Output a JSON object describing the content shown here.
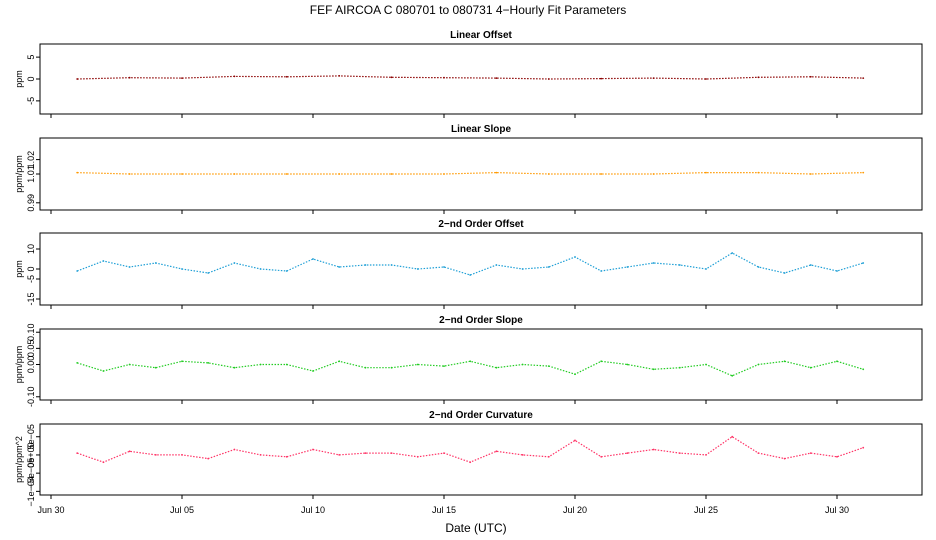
{
  "figure": {
    "title": "FEF   AIRCOA C   080701 to 080731   4−Hourly Fit Parameters",
    "xlabel": "Date (UTC)",
    "x_tick_labels": [
      "Jun 30",
      "Jul 05",
      "Jul 10",
      "Jul 15",
      "Jul 20",
      "Jul 25",
      "Jul 30"
    ]
  },
  "chart_data": [
    {
      "type": "line",
      "title": "Linear Offset",
      "ylabel": "ppm",
      "color": "#8b0000",
      "ylim": [
        -8,
        8
      ],
      "yticks": [
        -5,
        0,
        5
      ],
      "ytick_labels": [
        "-5",
        "0",
        "5"
      ],
      "x": [
        "Jul 01",
        "Jul 03",
        "Jul 05",
        "Jul 07",
        "Jul 09",
        "Jul 11",
        "Jul 13",
        "Jul 15",
        "Jul 17",
        "Jul 19",
        "Jul 21",
        "Jul 23",
        "Jul 25",
        "Jul 27",
        "Jul 29",
        "Jul 31"
      ],
      "values": [
        0.0,
        0.3,
        0.2,
        0.6,
        0.5,
        0.7,
        0.4,
        0.3,
        0.2,
        0.0,
        0.1,
        0.2,
        0.0,
        0.4,
        0.5,
        0.2
      ]
    },
    {
      "type": "line",
      "title": "Linear Slope",
      "ylabel": "ppm/ppm",
      "color": "#ff9900",
      "ylim": [
        0.985,
        1.035
      ],
      "yticks": [
        0.99,
        1.01,
        1.02
      ],
      "ytick_labels": [
        "0.99",
        "1.01",
        "1.02"
      ],
      "x": [
        "Jul 01",
        "Jul 03",
        "Jul 05",
        "Jul 07",
        "Jul 09",
        "Jul 11",
        "Jul 13",
        "Jul 15",
        "Jul 17",
        "Jul 19",
        "Jul 21",
        "Jul 23",
        "Jul 25",
        "Jul 27",
        "Jul 29",
        "Jul 31"
      ],
      "values": [
        1.011,
        1.01,
        1.01,
        1.01,
        1.01,
        1.01,
        1.01,
        1.01,
        1.011,
        1.01,
        1.01,
        1.01,
        1.011,
        1.011,
        1.01,
        1.011
      ]
    },
    {
      "type": "line",
      "title": "2−nd Order Offset",
      "ylabel": "ppm",
      "color": "#1e9fd6",
      "ylim": [
        -18,
        18
      ],
      "yticks": [
        -15,
        -5,
        0,
        10
      ],
      "ytick_labels": [
        "-15",
        "-5",
        "0",
        "10"
      ],
      "x": [
        "Jul 01",
        "Jul 02",
        "Jul 03",
        "Jul 04",
        "Jul 05",
        "Jul 06",
        "Jul 07",
        "Jul 08",
        "Jul 09",
        "Jul 10",
        "Jul 11",
        "Jul 12",
        "Jul 13",
        "Jul 14",
        "Jul 15",
        "Jul 16",
        "Jul 17",
        "Jul 18",
        "Jul 19",
        "Jul 20",
        "Jul 21",
        "Jul 22",
        "Jul 23",
        "Jul 24",
        "Jul 25",
        "Jul 26",
        "Jul 27",
        "Jul 28",
        "Jul 29",
        "Jul 30",
        "Jul 31"
      ],
      "values": [
        -1,
        4,
        1,
        3,
        0,
        -2,
        3,
        0,
        -1,
        5,
        1,
        2,
        2,
        0,
        1,
        -3,
        2,
        0,
        1,
        6,
        -1,
        1,
        3,
        2,
        0,
        8,
        1,
        -2,
        2,
        -1,
        3
      ]
    },
    {
      "type": "line",
      "title": "2−nd Order Slope",
      "ylabel": "ppm/ppm",
      "color": "#22cc22",
      "ylim": [
        -0.11,
        0.11
      ],
      "yticks": [
        -0.1,
        0.0,
        0.05,
        0.1
      ],
      "ytick_labels": [
        "-0.10",
        "0.00",
        "0.05",
        "0.10"
      ],
      "x": [
        "Jul 01",
        "Jul 02",
        "Jul 03",
        "Jul 04",
        "Jul 05",
        "Jul 06",
        "Jul 07",
        "Jul 08",
        "Jul 09",
        "Jul 10",
        "Jul 11",
        "Jul 12",
        "Jul 13",
        "Jul 14",
        "Jul 15",
        "Jul 16",
        "Jul 17",
        "Jul 18",
        "Jul 19",
        "Jul 20",
        "Jul 21",
        "Jul 22",
        "Jul 23",
        "Jul 24",
        "Jul 25",
        "Jul 26",
        "Jul 27",
        "Jul 28",
        "Jul 29",
        "Jul 30",
        "Jul 31"
      ],
      "values": [
        0.005,
        -0.02,
        0.0,
        -0.01,
        0.01,
        0.005,
        -0.01,
        0.0,
        0.0,
        -0.02,
        0.01,
        -0.01,
        -0.01,
        0.0,
        -0.005,
        0.01,
        -0.01,
        0.0,
        -0.005,
        -0.03,
        0.01,
        0.0,
        -0.015,
        -0.01,
        0.0,
        -0.035,
        0.0,
        0.01,
        -0.01,
        0.01,
        -0.015
      ]
    },
    {
      "type": "line",
      "title": "2−nd Order Curvature",
      "ylabel": "ppm/ppm^2",
      "color": "#ff3366",
      "ylim": [
        -0.00011,
        8.5e-05
      ],
      "yticks": [
        -0.0001,
        -5e-05,
        0.0,
        5e-05
      ],
      "ytick_labels": [
        "−1e−04",
        "−5e−05",
        "0e+00",
        "5e−05"
      ],
      "x": [
        "Jul 01",
        "Jul 02",
        "Jul 03",
        "Jul 04",
        "Jul 05",
        "Jul 06",
        "Jul 07",
        "Jul 08",
        "Jul 09",
        "Jul 10",
        "Jul 11",
        "Jul 12",
        "Jul 13",
        "Jul 14",
        "Jul 15",
        "Jul 16",
        "Jul 17",
        "Jul 18",
        "Jul 19",
        "Jul 20",
        "Jul 21",
        "Jul 22",
        "Jul 23",
        "Jul 24",
        "Jul 25",
        "Jul 26",
        "Jul 27",
        "Jul 28",
        "Jul 29",
        "Jul 30",
        "Jul 31"
      ],
      "values": [
        5e-06,
        -2e-05,
        1e-05,
        0.0,
        0.0,
        -1e-05,
        1.5e-05,
        0.0,
        -5e-06,
        1.5e-05,
        0.0,
        5e-06,
        5e-06,
        -5e-06,
        5e-06,
        -2e-05,
        1e-05,
        0.0,
        -5e-06,
        4e-05,
        -5e-06,
        5e-06,
        1.5e-05,
        5e-06,
        0.0,
        5e-05,
        5e-06,
        -1e-05,
        5e-06,
        -5e-06,
        2e-05
      ]
    }
  ]
}
